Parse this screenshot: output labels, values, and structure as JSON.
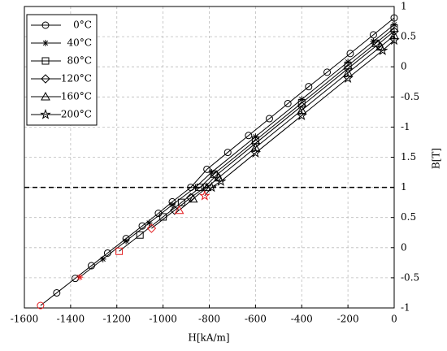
{
  "chart_data": {
    "type": "line",
    "xlabel": "H[kA/m]",
    "ylabel": "B[T]",
    "xlim": [
      -1600,
      0
    ],
    "xticks": [
      -1600,
      -1400,
      -1200,
      -1000,
      -800,
      -600,
      -400,
      -200,
      0
    ],
    "ylim": [
      -1,
      4
    ],
    "yticks": [
      -1,
      -0.5,
      0,
      0.5,
      1,
      1.5,
      {
        "value": 2,
        "label": "-1"
      },
      {
        "value": 2.5,
        "label": "-0.5"
      },
      {
        "value": 3,
        "label": "0"
      },
      {
        "value": 3.5,
        "label": "0.5"
      },
      {
        "value": 4,
        "label": "1"
      }
    ],
    "grid": true,
    "legend": "upper left",
    "hline": 1,
    "start_color": "#e31a1c",
    "series": [
      {
        "name": "0°C",
        "color": "#000000",
        "marker": "circle",
        "x": [
          -1530,
          -1460,
          -1380,
          -1310,
          -1240,
          -1160,
          -1090,
          -1020,
          -960,
          -880,
          -810,
          -720,
          -630,
          -540,
          -460,
          -370,
          -290,
          -190,
          -90,
          0
        ],
        "values": [
          -0.96,
          -0.75,
          -0.51,
          -0.3,
          -0.09,
          0.15,
          0.36,
          0.57,
          0.76,
          1.0,
          1.3,
          1.58,
          1.86,
          2.14,
          2.39,
          2.67,
          2.91,
          3.22,
          3.53,
          3.81
        ]
      },
      {
        "name": "40°C",
        "color": "#000000",
        "marker": "asterisk",
        "x": [
          -1360,
          -1260,
          -1160,
          -1060,
          -960,
          -860,
          -790,
          -600,
          -400,
          -200,
          -90,
          0
        ],
        "values": [
          -0.49,
          -0.19,
          0.11,
          0.41,
          0.71,
          1.0,
          1.25,
          1.84,
          2.46,
          3.08,
          3.42,
          3.7
        ]
      },
      {
        "name": "80°C",
        "color": "#000000",
        "marker": "square",
        "x": [
          -1190,
          -1100,
          -1000,
          -920,
          -840,
          -780,
          -600,
          -400,
          -200,
          -80,
          0
        ],
        "values": [
          -0.06,
          0.21,
          0.51,
          0.75,
          1.0,
          1.22,
          1.78,
          2.4,
          3.02,
          3.39,
          3.64
        ]
      },
      {
        "name": "120°C",
        "color": "#000000",
        "marker": "diamond",
        "x": [
          -1050,
          -950,
          -880,
          -820,
          -770,
          -600,
          -400,
          -200,
          -70,
          0
        ],
        "values": [
          0.32,
          0.62,
          0.83,
          1.0,
          1.2,
          1.73,
          2.35,
          2.97,
          3.37,
          3.59
        ]
      },
      {
        "name": "160°C",
        "color": "#000000",
        "marker": "triangle",
        "x": [
          -930,
          -870,
          -810,
          -760,
          -600,
          -400,
          -200,
          -60,
          0
        ],
        "values": [
          0.62,
          0.81,
          1.0,
          1.16,
          1.66,
          2.28,
          2.9,
          3.33,
          3.52
        ]
      },
      {
        "name": "200°C",
        "color": "#000000",
        "marker": "star",
        "x": [
          -820,
          -790,
          -750,
          -600,
          -400,
          -200,
          -50,
          0
        ],
        "values": [
          0.86,
          1.0,
          1.1,
          1.57,
          2.19,
          2.81,
          3.27,
          3.44
        ]
      }
    ]
  }
}
